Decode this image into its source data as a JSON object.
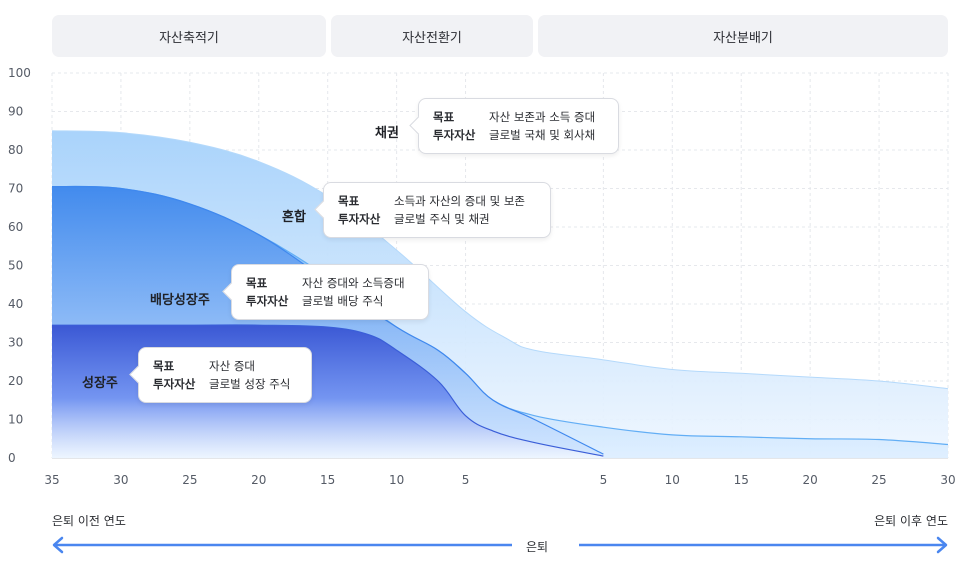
{
  "phases": [
    "자산축적기",
    "자산전환기",
    "자산분배기"
  ],
  "colors": {
    "bond": "#b4d9fb",
    "mixed": "#62aef5",
    "dividend": "#3f88ee",
    "growth": "#3a5ed8",
    "axis": "#555b66",
    "grid": "#e6e8ec",
    "arrow": "#4a86ef"
  },
  "callouts": [
    {
      "category": "채권",
      "goal_label": "목표",
      "goal": "자산 보존과 소득 증대",
      "asset_label": "투자자산",
      "asset": "글로벌 국채 및 회사채"
    },
    {
      "category": "혼합",
      "goal_label": "목표",
      "goal": "소득과 자산의 증대 및 보존",
      "asset_label": "투자자산",
      "asset": "글로벌 주식 및 채권"
    },
    {
      "category": "배당성장주",
      "goal_label": "목표",
      "goal": "자산 증대와 소득증대",
      "asset_label": "투자자산",
      "asset": "글로벌 배당 주식"
    },
    {
      "category": "성장주",
      "goal_label": "목표",
      "goal": "자산 증대",
      "asset_label": "투자자산",
      "asset": "글로벌 성장 주식"
    }
  ],
  "bottom": {
    "left_label": "은퇴 이전 연도",
    "right_label": "은퇴 이후 연도",
    "center_label": "은퇴"
  },
  "chart_data": {
    "type": "area",
    "xlabel": "",
    "ylabel": "",
    "ylim": [
      0,
      100
    ],
    "y_ticks": [
      0,
      10,
      20,
      30,
      40,
      50,
      60,
      70,
      80,
      90,
      100
    ],
    "x_ticks_before": [
      "35",
      "30",
      "25",
      "20",
      "15",
      "10",
      "5"
    ],
    "x_ticks_after": [
      "5",
      "10",
      "15",
      "20",
      "25",
      "30"
    ],
    "x_range": [
      -35,
      30
    ],
    "grid": true,
    "series": [
      {
        "name": "채권",
        "x": [
          -35,
          -30,
          -25,
          -20,
          -15,
          -10,
          -5,
          -2,
          0,
          5,
          10,
          15,
          20,
          25,
          30
        ],
        "values": [
          85,
          84.5,
          82,
          77,
          68,
          54,
          38,
          31,
          28,
          25.5,
          23,
          22,
          21,
          20,
          18
        ]
      },
      {
        "name": "혼합",
        "x": [
          -35,
          -30,
          -25,
          -20,
          -15,
          -10,
          -7,
          -5,
          -3,
          0,
          5,
          10,
          15,
          20,
          25,
          30
        ],
        "values": [
          70.5,
          70,
          66,
          58,
          47,
          34,
          28,
          22,
          15,
          11,
          8,
          6,
          5.5,
          5,
          4.8,
          3.5
        ]
      },
      {
        "name": "배당성장주",
        "x": [
          -35,
          -30,
          -25,
          -20,
          -15,
          -10,
          -7,
          -5,
          -3,
          0,
          5
        ],
        "values": [
          70.5,
          70,
          66,
          58,
          46,
          34,
          28,
          22,
          15,
          10,
          1
        ]
      },
      {
        "name": "성장주",
        "x": [
          -35,
          -30,
          -25,
          -20,
          -15,
          -12,
          -10,
          -7,
          -5,
          -3,
          0,
          5
        ],
        "values": [
          34.5,
          34.5,
          34.5,
          34.5,
          34,
          32,
          28,
          20,
          11,
          7,
          4,
          0.5
        ]
      }
    ]
  }
}
